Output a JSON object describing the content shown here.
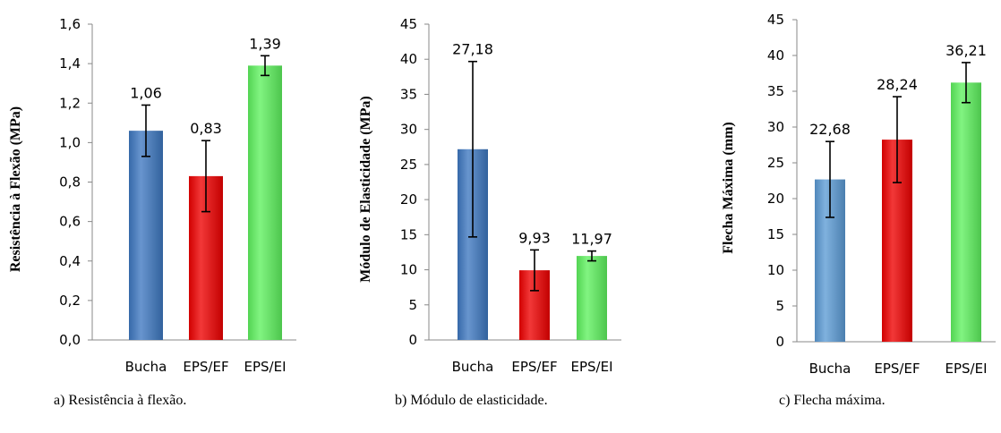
{
  "chart_data": [
    {
      "type": "bar",
      "title": "",
      "xlabel": "",
      "ylabel": "Resistência à Flexão (MPa)",
      "categories": [
        "Bucha",
        "EPS/EF",
        "EPS/EI"
      ],
      "values": [
        1.06,
        0.83,
        1.39
      ],
      "value_labels": [
        "1,06",
        "0,83",
        "1,39"
      ],
      "error": [
        0.13,
        0.18,
        0.05
      ],
      "ylim": [
        0,
        1.6
      ],
      "yticks": [
        "0,0",
        "0,2",
        "0,4",
        "0,6",
        "0,8",
        "1,0",
        "1,2",
        "1,4",
        "1,6"
      ],
      "grid": false,
      "colors": [
        "#3d77c0",
        "#ee0000",
        "#5ef15e"
      ],
      "caption": "a) Resistência à flexão."
    },
    {
      "type": "bar",
      "title": "",
      "xlabel": "",
      "ylabel": "Módulo de Elasticidade (MPa)",
      "categories": [
        "Bucha",
        "EPS/EF",
        "EPS/EI"
      ],
      "values": [
        27.18,
        9.93,
        11.97
      ],
      "value_labels": [
        "27,18",
        "9,93",
        "11,97"
      ],
      "error": [
        12.5,
        2.9,
        0.7
      ],
      "ylim": [
        0,
        45
      ],
      "yticks": [
        "0",
        "5",
        "10",
        "15",
        "20",
        "25",
        "30",
        "35",
        "40",
        "45"
      ],
      "grid": false,
      "colors": [
        "#3d77c0",
        "#ee0000",
        "#5ef15e"
      ],
      "caption": "b) Módulo de elasticidade."
    },
    {
      "type": "bar",
      "title": "",
      "xlabel": "",
      "ylabel": "Flecha Máxima (mm)",
      "categories": [
        "Bucha",
        "EPS/EF",
        "EPS/EI"
      ],
      "values": [
        22.68,
        28.24,
        36.21
      ],
      "value_labels": [
        "22,68",
        "28,24",
        "36,21"
      ],
      "error": [
        5.3,
        6.0,
        2.8
      ],
      "ylim": [
        0,
        45
      ],
      "yticks": [
        "0",
        "5",
        "10",
        "15",
        "20",
        "25",
        "30",
        "35",
        "40",
        "45"
      ],
      "grid": false,
      "colors": [
        "#5b9bd5",
        "#ee0000",
        "#5ef15e"
      ],
      "caption": "c) Flecha máxima."
    }
  ]
}
